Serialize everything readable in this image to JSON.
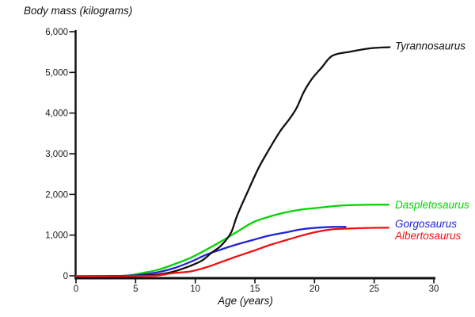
{
  "chart_data": {
    "type": "line",
    "y_title": "Body mass (kilograms)",
    "x_title": "Age (years)",
    "xlim": [
      0,
      30
    ],
    "ylim": [
      0,
      6000
    ],
    "x_ticks": [
      0,
      5,
      10,
      15,
      20,
      25,
      30
    ],
    "y_ticks": [
      0,
      1000,
      2000,
      3000,
      4000,
      5000,
      6000
    ],
    "y_tick_labels": [
      "0",
      "1,000",
      "2,000",
      "3,000",
      "4,000",
      "5,000",
      "6,000"
    ],
    "grid": false,
    "legend_position": "labels-at-curve-ends",
    "axis_color": "#111111",
    "draw_order": [
      1,
      2,
      0,
      3
    ],
    "series": [
      {
        "name": "Tyrannosaurus",
        "color": "#111111",
        "label_mass": 5650,
        "points": [
          [
            0,
            0
          ],
          [
            3,
            3
          ],
          [
            5,
            12
          ],
          [
            6,
            22
          ],
          [
            7,
            45
          ],
          [
            8.2,
            115
          ],
          [
            9.6,
            255
          ],
          [
            10.6,
            390
          ],
          [
            11.4,
            585
          ],
          [
            12.2,
            760
          ],
          [
            13,
            1070
          ],
          [
            13.5,
            1480
          ],
          [
            14.4,
            2080
          ],
          [
            15.3,
            2650
          ],
          [
            16.2,
            3120
          ],
          [
            17.1,
            3550
          ],
          [
            17.9,
            3860
          ],
          [
            18.5,
            4130
          ],
          [
            19.1,
            4520
          ],
          [
            19.8,
            4850
          ],
          [
            20.6,
            5120
          ],
          [
            21.5,
            5410
          ],
          [
            23,
            5510
          ],
          [
            24.6,
            5590
          ],
          [
            26.3,
            5620
          ]
        ]
      },
      {
        "name": "Daspletosaurus",
        "color": "#00d500",
        "label_mass": 1755,
        "points": [
          [
            0,
            0
          ],
          [
            3,
            3
          ],
          [
            4.4,
            15
          ],
          [
            5.6,
            80
          ],
          [
            6.9,
            160
          ],
          [
            8.2,
            290
          ],
          [
            9.6,
            450
          ],
          [
            10.9,
            645
          ],
          [
            12.2,
            860
          ],
          [
            13.5,
            1090
          ],
          [
            14.9,
            1330
          ],
          [
            16.2,
            1460
          ],
          [
            17.5,
            1560
          ],
          [
            18.9,
            1635
          ],
          [
            20.2,
            1675
          ],
          [
            22.2,
            1733
          ],
          [
            24.2,
            1753
          ],
          [
            26.2,
            1755
          ]
        ]
      },
      {
        "name": "Gorgosaurus",
        "color": "#2222dd",
        "label_mass": 1285,
        "points": [
          [
            0,
            0
          ],
          [
            3,
            2
          ],
          [
            5,
            20
          ],
          [
            5.6,
            40
          ],
          [
            6.9,
            100
          ],
          [
            8.2,
            195
          ],
          [
            9.6,
            350
          ],
          [
            10.9,
            525
          ],
          [
            12.2,
            660
          ],
          [
            13.5,
            780
          ],
          [
            14.9,
            895
          ],
          [
            16.2,
            995
          ],
          [
            17.5,
            1070
          ],
          [
            18.9,
            1150
          ],
          [
            20.2,
            1190
          ],
          [
            21.5,
            1210
          ],
          [
            22.6,
            1210
          ]
        ]
      },
      {
        "name": "Albertosaurus",
        "color": "#ee1111",
        "label_mass": 995,
        "points": [
          [
            0,
            0
          ],
          [
            3,
            0
          ],
          [
            5.6,
            8
          ],
          [
            6.9,
            20
          ],
          [
            8.2,
            78
          ],
          [
            9.6,
            117
          ],
          [
            10.9,
            215
          ],
          [
            12.2,
            350
          ],
          [
            13.5,
            487
          ],
          [
            14.9,
            625
          ],
          [
            16.2,
            760
          ],
          [
            17.5,
            875
          ],
          [
            18.9,
            995
          ],
          [
            20.2,
            1090
          ],
          [
            21.5,
            1150
          ],
          [
            23,
            1170
          ],
          [
            24.5,
            1185
          ],
          [
            26.2,
            1190
          ]
        ]
      }
    ]
  }
}
